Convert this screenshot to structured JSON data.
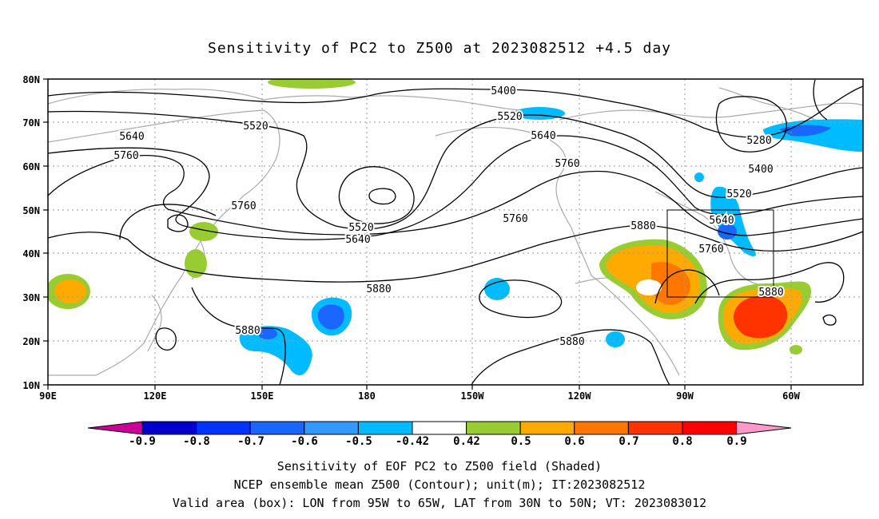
{
  "title": "Sensitivity of PC2 to Z500 at 2023082512 +4.5 day",
  "map": {
    "lat_ticks": [
      "80N",
      "70N",
      "60N",
      "50N",
      "40N",
      "30N",
      "20N",
      "10N"
    ],
    "lon_ticks": [
      "90E",
      "120E",
      "150E",
      "180",
      "150W",
      "120W",
      "90W",
      "60W"
    ],
    "contour_labels": [
      "5400",
      "5520",
      "5520",
      "5640",
      "5640",
      "5760",
      "5760",
      "5280",
      "5400",
      "5520",
      "5640",
      "5760",
      "5760",
      "5520",
      "5640",
      "5760",
      "5880",
      "5880",
      "5880",
      "5880",
      "5880"
    ],
    "box": {
      "lon_from": "95W",
      "lon_to": "65W",
      "lat_from": "30N",
      "lat_to": "50N"
    }
  },
  "colorbar": {
    "labels": [
      "-0.9",
      "-0.8",
      "-0.7",
      "-0.6",
      "-0.5",
      "-0.42",
      "0.42",
      "0.5",
      "0.6",
      "0.7",
      "0.8",
      "0.9"
    ],
    "colors": [
      "#cc0099",
      "#0000cc",
      "#0033ff",
      "#1a66ff",
      "#3399ff",
      "#00bbff",
      "#ffffff",
      "#99cc33",
      "#ffaa00",
      "#ff7700",
      "#ff3300",
      "#ff0000",
      "#ff99cc"
    ]
  },
  "captions": {
    "line1": "Sensitivity of EOF PC2 to Z500 field (Shaded)",
    "line2": "NCEP ensemble mean Z500 (Contour); unit(m); IT:2023082512",
    "line3": "Valid area (box): LON from 95W to 65W, LAT from 30N to 50N; VT: 2023083012"
  }
}
